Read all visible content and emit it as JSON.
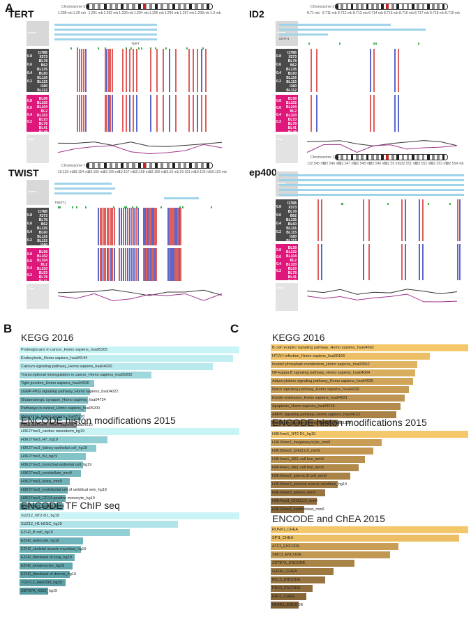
{
  "panel_labels": {
    "A": "A",
    "B": "B",
    "C": "C"
  },
  "genes": [
    {
      "id": "tert",
      "name": "TERT",
      "chromosome": "Chromosome 5",
      "ticks": [
        "1.289 mb",
        "1.29 mb",
        "1.291 mb",
        "1.292 mb",
        "1.293 mb",
        "1.294 mb",
        "1.295 mb",
        "1.296 mb",
        "1.297 mb",
        "1.298 mb",
        "1.3 mb"
      ],
      "transcript_label": "TERT"
    },
    {
      "id": "id2",
      "name": "ID2",
      "chromosome": "Chromosome 2",
      "ticks": [
        "8.71 mb",
        "8.711 mb",
        "8.712 mb",
        "8.713 mb",
        "8.714 mb",
        "8.715 mb",
        "8.716 mb",
        "8.717 mb",
        "8.718 mb",
        "8.719 mb"
      ],
      "transcript_label": "CRIT-4"
    },
    {
      "id": "twist",
      "name": "TWIST",
      "chromosome": "Chromosome 7",
      "ticks": [
        "19.153 mb",
        "19.154 mb",
        "19.155 mb",
        "19.156 mb",
        "19.157 mb",
        "19.158 mb",
        "19.159 mb",
        "19.16 mb",
        "19.161 mb",
        "19.162 mb",
        "19.163 mb"
      ],
      "transcript_label": "TWIST1"
    },
    {
      "id": "ep400",
      "name": "ep400",
      "chromosome": "Chromosome 12",
      "ticks": [
        "132.545 mb",
        "132.546 mb",
        "132.547 mb",
        "132.548 mb",
        "132.549 mb",
        "132.55 mb",
        "132.551 mb",
        "132.552 mb",
        "132.553 mb",
        "132.554 mb"
      ],
      "transcript_label": ""
    }
  ],
  "track_labels": {
    "genes": "Genes",
    "expression": "Expr"
  },
  "samples_group1": "I176B\nX373\nBL78\nB62\nBL135\nBL60\nBL116\nBL115\nI180\nBL112",
  "samples_group2": "BL58\nBL102\nBL104\nBL2\nBL103\nBL53\nBL78\nBL41\nBL48",
  "axis_ticks": {
    "t08": "0.8",
    "t06": "0.6",
    "t04": "0.4",
    "t02": "0.2"
  },
  "chart_data": [
    {
      "type": "bar",
      "panel": "B",
      "title": "KEGG 2016",
      "categories": [
        "Proteoglycans in cancer_Homo sapiens_hsa05205",
        "Endocytosis_Homo sapiens_hsa04144",
        "Calcium signaling pathway_Homo sapiens_hsa04020",
        "Transcriptional misregulation in cancer_Homo sapiens_hsa05202",
        "Tight junction_Homo sapiens_hsa04530",
        "cGMP-PKG signaling pathway_Homo sapiens_hsa04022",
        "Glutamatergic synapse_Homo sapiens_hsa04724",
        "Pathways in cancer_Homo sapiens_hsa05200",
        "Melanoma_Homo sapiens_hsa05218",
        "Focal adhesion_Homo sapiens_hsa04510"
      ],
      "values": [
        1.0,
        0.97,
        0.88,
        0.6,
        0.34,
        0.32,
        0.31,
        0.3,
        0.28,
        0.26
      ],
      "colors": [
        "#c8f4f6",
        "#c1eff1",
        "#b8e9ec",
        "#9fd8dc",
        "#86c6cb",
        "#7fc0c5",
        "#7bbbc1",
        "#78b8be",
        "#6eb0b6",
        "#8a8a8a"
      ]
    },
    {
      "type": "bar",
      "panel": "B",
      "title": "ENCODE histon modifications 2015",
      "categories": [
        "H3K27me3_cardiac mesoderm_hg19",
        "H3K27me3_H7_hg19",
        "H3K27me3_kidney epithelial cell_hg19",
        "H3K27me3_BJ_hg19",
        "H3K27me3_bronchial epithelial cell_hg19",
        "H3K27me3_cerebellum_mm9",
        "H3K27me3_testis_mm9",
        "H3K27me3_endothelial cell of umbilical vein_hg19",
        "H3K27me3_CD14-positive monocyte_hg19",
        "H3K27me3_kidney_mm9"
      ],
      "values": [
        1.0,
        0.4,
        0.35,
        0.3,
        0.29,
        0.28,
        0.23,
        0.22,
        0.21,
        0.2
      ],
      "colors": [
        "#c8f4f6",
        "#8fcfd4",
        "#88c9ce",
        "#82c3c8",
        "#7cbdc3",
        "#76b7bd",
        "#70b1b7",
        "#6aabb1",
        "#64a5ab",
        "#5ea0a6"
      ]
    },
    {
      "type": "bar",
      "panel": "B",
      "title": "ENCODE TF ChIP seq",
      "categories": [
        "SUZ12_NT2-D1_hg19",
        "SUZ12_H1-hESC_hg19",
        "EZH2_B cell_hg19",
        "EZH2_astrocyte_hg19",
        "EZH2_skeletal muscle myoblast_hg19",
        "EZH2_fibroblast of lung_hg19",
        "EZH2_keratinocyte_hg19",
        "EZH2_fibroblast of dermis_hg19",
        "TCF7L2_HEK293_hg19",
        "ZBTB7A_K562_hg19"
      ],
      "values": [
        1.0,
        0.72,
        0.5,
        0.29,
        0.28,
        0.25,
        0.24,
        0.23,
        0.21,
        0.13
      ],
      "colors": [
        "#c8f4f6",
        "#b0e4e8",
        "#92d0d5",
        "#6fb4ba",
        "#6bb0b6",
        "#66acb2",
        "#62a8ae",
        "#5ea4aa",
        "#5aa0a6",
        "#569ca2"
      ]
    },
    {
      "type": "bar",
      "panel": "C",
      "title": "KEGG 2016",
      "categories": [
        "B cell receptor signaling pathway_Homo sapiens_hsa04662",
        "HTLV-I infection_Homo sapiens_hsa05166",
        "Inositol phosphate metabolism_Homo sapiens_hsa00562",
        "NF-kappa B signaling pathway_Homo sapiens_hsa04064",
        "Adipocytokine signaling pathway_Homo sapiens_hsa04920",
        "Notch signaling pathway_Homo sapiens_hsa04330",
        "Insulin resistance_Homo sapiens_hsa04931",
        "Apoptosis_Homo sapiens_hsa04210",
        "AMPK signaling pathway_Homo sapiens_hsa04152",
        "Carbon metabolism_Homo sapiens_hsa01200"
      ],
      "values": [
        1.0,
        0.76,
        0.7,
        0.69,
        0.68,
        0.66,
        0.64,
        0.62,
        0.6,
        0.32
      ],
      "colors": [
        "#f5c76b",
        "#ecbf67",
        "#e0b462",
        "#d8ad5e",
        "#d0a55a",
        "#c69c55",
        "#bd9451",
        "#b38b4c",
        "#a98247",
        "#8a6a3a"
      ]
    },
    {
      "type": "bar",
      "panel": "C",
      "title": "ENCODE histon modifications 2015",
      "categories": [
        "H3K4me1_NT2-D1_hg19",
        "H3K36me3_megakaryocyte_mm9",
        "H3K36me3_CH12.LX_mm9",
        "H3K4me1_MEL cell line_mm9",
        "H3K4me1_MEL cell line_mm9",
        "H3K36me3_splenic B cell_mm9",
        "H3K36me3_skeletal muscle myoblast_hg19",
        "H3K36me3_spleen_mm9",
        "H3K4me3_CH12.LX_mm9",
        "H3K36me3_erythroblast_mm9"
      ],
      "values": [
        1.0,
        0.53,
        0.49,
        0.45,
        0.42,
        0.38,
        0.32,
        0.26,
        0.22,
        0.16
      ],
      "colors": [
        "#f5c76b",
        "#c89e56",
        "#c19752",
        "#b9904e",
        "#b1894a",
        "#a98246",
        "#a07b43",
        "#98743f",
        "#906d3c",
        "#886638"
      ]
    },
    {
      "type": "bar",
      "panel": "C",
      "title": "ENCODE and ChEA 2015",
      "categories": [
        "RUNX1_CHEA",
        "SPI1_CHEA",
        "ATF3_ENCODE",
        "SMC3_ENCODE",
        "ZBTB7A_ENCODE",
        "GATA1_CHEA",
        "BCL3_ENCODE",
        "PBX3_ENCODE",
        "EBF1_CHEA",
        "NFKB1_ENCODE"
      ],
      "values": [
        1.0,
        0.9,
        0.61,
        0.57,
        0.4,
        0.3,
        0.26,
        0.2,
        0.17,
        0.12
      ],
      "colors": [
        "#f5c76b",
        "#ecbf67",
        "#c89e56",
        "#c19752",
        "#a98246",
        "#9e7a42",
        "#96733f",
        "#8e6c3b",
        "#876638",
        "#806035"
      ]
    }
  ]
}
